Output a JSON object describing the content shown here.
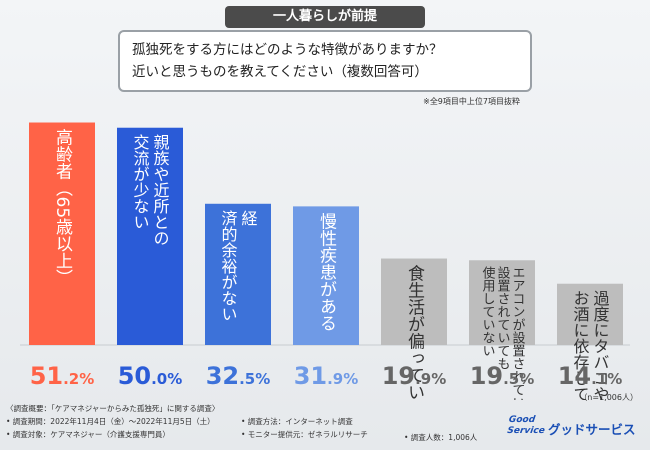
{
  "header": {
    "premise": "一人暮らしが前提",
    "question_line1": "孤独死をする方にはどのような特徴がありますか？",
    "question_line2": "近いと思うものを教えてください（複数回答可）",
    "note": "※全9項目中上位7項目抜粋"
  },
  "chart_data": {
    "type": "bar",
    "categories": [
      "高齢者（65歳以上）",
      "親族や近所との交流が少ない",
      "経済的余裕がない",
      "慢性疾患がある",
      "食生活が偏っている",
      "エアコンが設置されていない、設置されていても使用していない",
      "お酒に依存している、過度にタバコや"
    ],
    "label_columns": [
      [
        "高齢者（65歳以上）"
      ],
      [
        "交流が少ない",
        "親族や近所との"
      ],
      [
        "済的余裕がない",
        "経"
      ],
      [
        "慢性疾患がある"
      ],
      [
        "食生活が偏っている"
      ],
      [
        "使用していない",
        "設置されていても",
        "エアコンが設置されていない、"
      ],
      [
        "お酒に依存している",
        "過度にタバコや"
      ]
    ],
    "values": [
      51.2,
      50.0,
      32.5,
      31.9,
      19.9,
      19.5,
      14.1
    ],
    "value_labels": [
      {
        "int": "51",
        "dec": ".2%"
      },
      {
        "int": "50",
        "dec": ".0%"
      },
      {
        "int": "32",
        "dec": ".5%"
      },
      {
        "int": "31",
        "dec": ".9%"
      },
      {
        "int": "19",
        "dec": ".9%"
      },
      {
        "int": "19",
        "dec": ".5%"
      },
      {
        "int": "14",
        "dec": ".1%"
      }
    ],
    "colors": [
      "#ff6347",
      "#2a5bd7",
      "#3d72d9",
      "#6f9ae6",
      "#bdbdbd",
      "#bdbdbd",
      "#bdbdbd"
    ],
    "value_colors": [
      "#ff6347",
      "#2a5bd7",
      "#3d72d9",
      "#6f9ae6",
      "#666666",
      "#666666",
      "#666666"
    ],
    "label_colors": [
      "#ffffff",
      "#ffffff",
      "#ffffff",
      "#ffffff",
      "#333333",
      "#333333",
      "#333333"
    ],
    "ylim": [
      0,
      55
    ],
    "n_note": "（n=1,006人）"
  },
  "footer": {
    "overview": "〈調査概要：「ケアマネジャーからみた孤独死」に関する調査〉",
    "period": "• 調査期間：2022年11月4日（金）〜2022年11月5日（土）",
    "method": "• 調査方法：インターネット調査",
    "target": "• 調査対象：ケアマネジャー（介護支援専門員）",
    "provider": "• モニター提供元：ゼネラルリサーチ",
    "sample": "• 調査人数：1,006人"
  },
  "logo": {
    "en_line1": "Good",
    "en_line2": "Service",
    "ja": "グッドサービス",
    "color": "#1a4fb5"
  }
}
